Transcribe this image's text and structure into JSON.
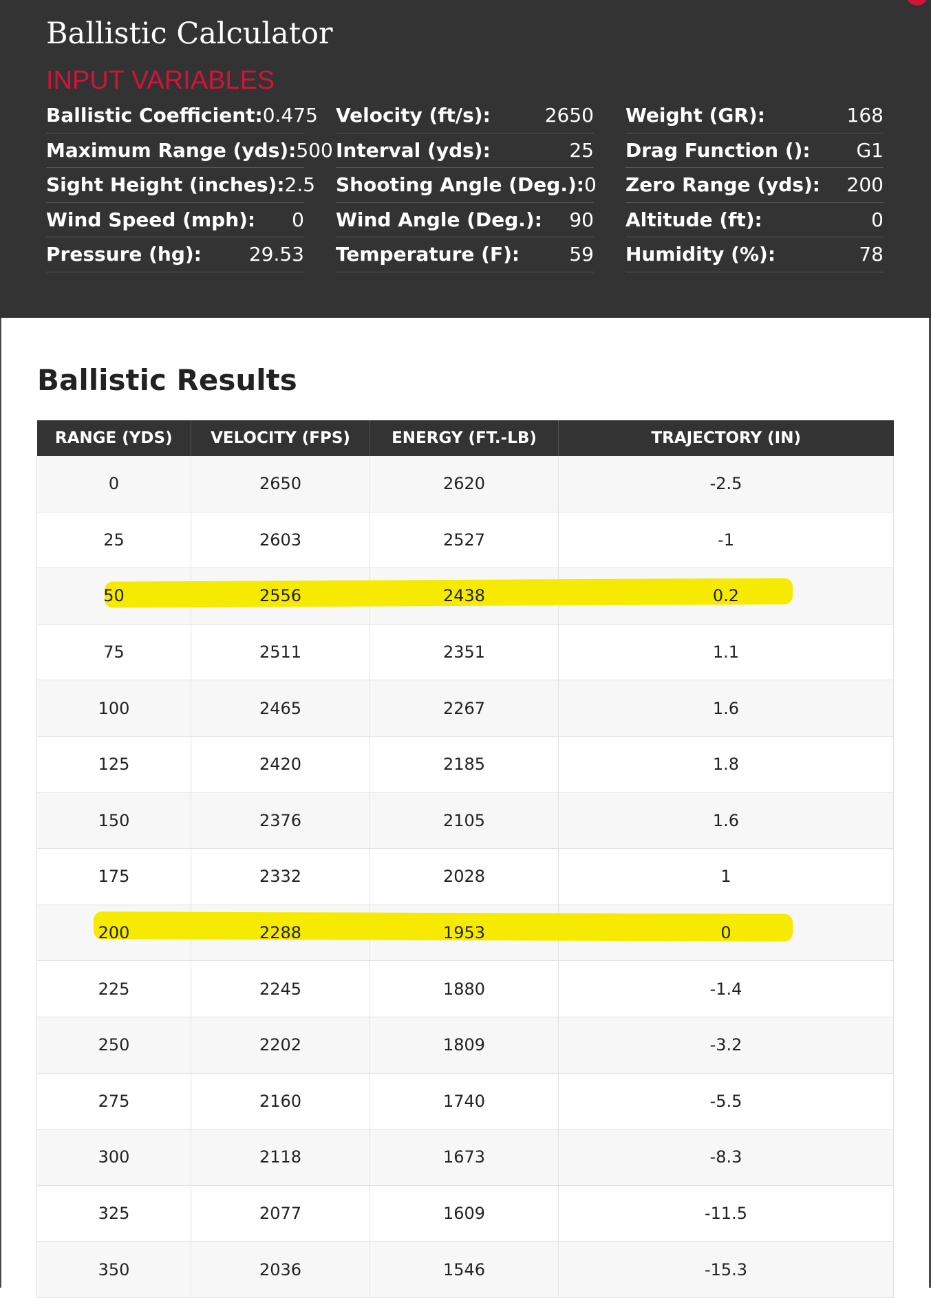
{
  "app_title": "Ballistic Calculator",
  "input_section_label": "INPUT VARIABLES",
  "inputs": [
    {
      "label": "Ballistic Coefficient:",
      "value": "0.475"
    },
    {
      "label": "Velocity (ft/s):",
      "value": "2650"
    },
    {
      "label": "Weight (GR):",
      "value": "168"
    },
    {
      "label": "Maximum Range (yds):",
      "value": "500"
    },
    {
      "label": "Interval (yds):",
      "value": "25"
    },
    {
      "label": "Drag Function ():",
      "value": "G1"
    },
    {
      "label": "Sight Height (inches):",
      "value": "2.5"
    },
    {
      "label": "Shooting Angle (Deg.):",
      "value": "0"
    },
    {
      "label": "Zero Range (yds):",
      "value": "200"
    },
    {
      "label": "Wind Speed (mph):",
      "value": "0"
    },
    {
      "label": "Wind Angle (Deg.):",
      "value": "90"
    },
    {
      "label": "Altitude (ft):",
      "value": "0"
    },
    {
      "label": "Pressure (hg):",
      "value": "29.53"
    },
    {
      "label": "Temperature (F):",
      "value": "59"
    },
    {
      "label": "Humidity (%):",
      "value": "78"
    }
  ],
  "results_title": "Ballistic Results",
  "results_table": {
    "headers": [
      "RANGE (YDS)",
      "VELOCITY (FPS)",
      "ENERGY (FT.-LB)",
      "TRAJECTORY (IN)"
    ],
    "rows": [
      [
        "0",
        "2650",
        "2620",
        "-2.5"
      ],
      [
        "25",
        "2603",
        "2527",
        "-1"
      ],
      [
        "50",
        "2556",
        "2438",
        "0.2"
      ],
      [
        "75",
        "2511",
        "2351",
        "1.1"
      ],
      [
        "100",
        "2465",
        "2267",
        "1.6"
      ],
      [
        "125",
        "2420",
        "2185",
        "1.8"
      ],
      [
        "150",
        "2376",
        "2105",
        "1.6"
      ],
      [
        "175",
        "2332",
        "2028",
        "1"
      ],
      [
        "200",
        "2288",
        "1953",
        "0"
      ],
      [
        "225",
        "2245",
        "1880",
        "-1.4"
      ],
      [
        "250",
        "2202",
        "1809",
        "-3.2"
      ],
      [
        "275",
        "2160",
        "1740",
        "-5.5"
      ],
      [
        "300",
        "2118",
        "1673",
        "-8.3"
      ],
      [
        "325",
        "2077",
        "1609",
        "-11.5"
      ],
      [
        "350",
        "2036",
        "1546",
        "-15.3"
      ]
    ],
    "highlighted_ranges": [
      "50",
      "200"
    ]
  },
  "colors": {
    "panel_bg": "#333333",
    "accent": "#d0153a",
    "highlight": "#f5ea00",
    "row_alt": "#f7f7f7"
  }
}
